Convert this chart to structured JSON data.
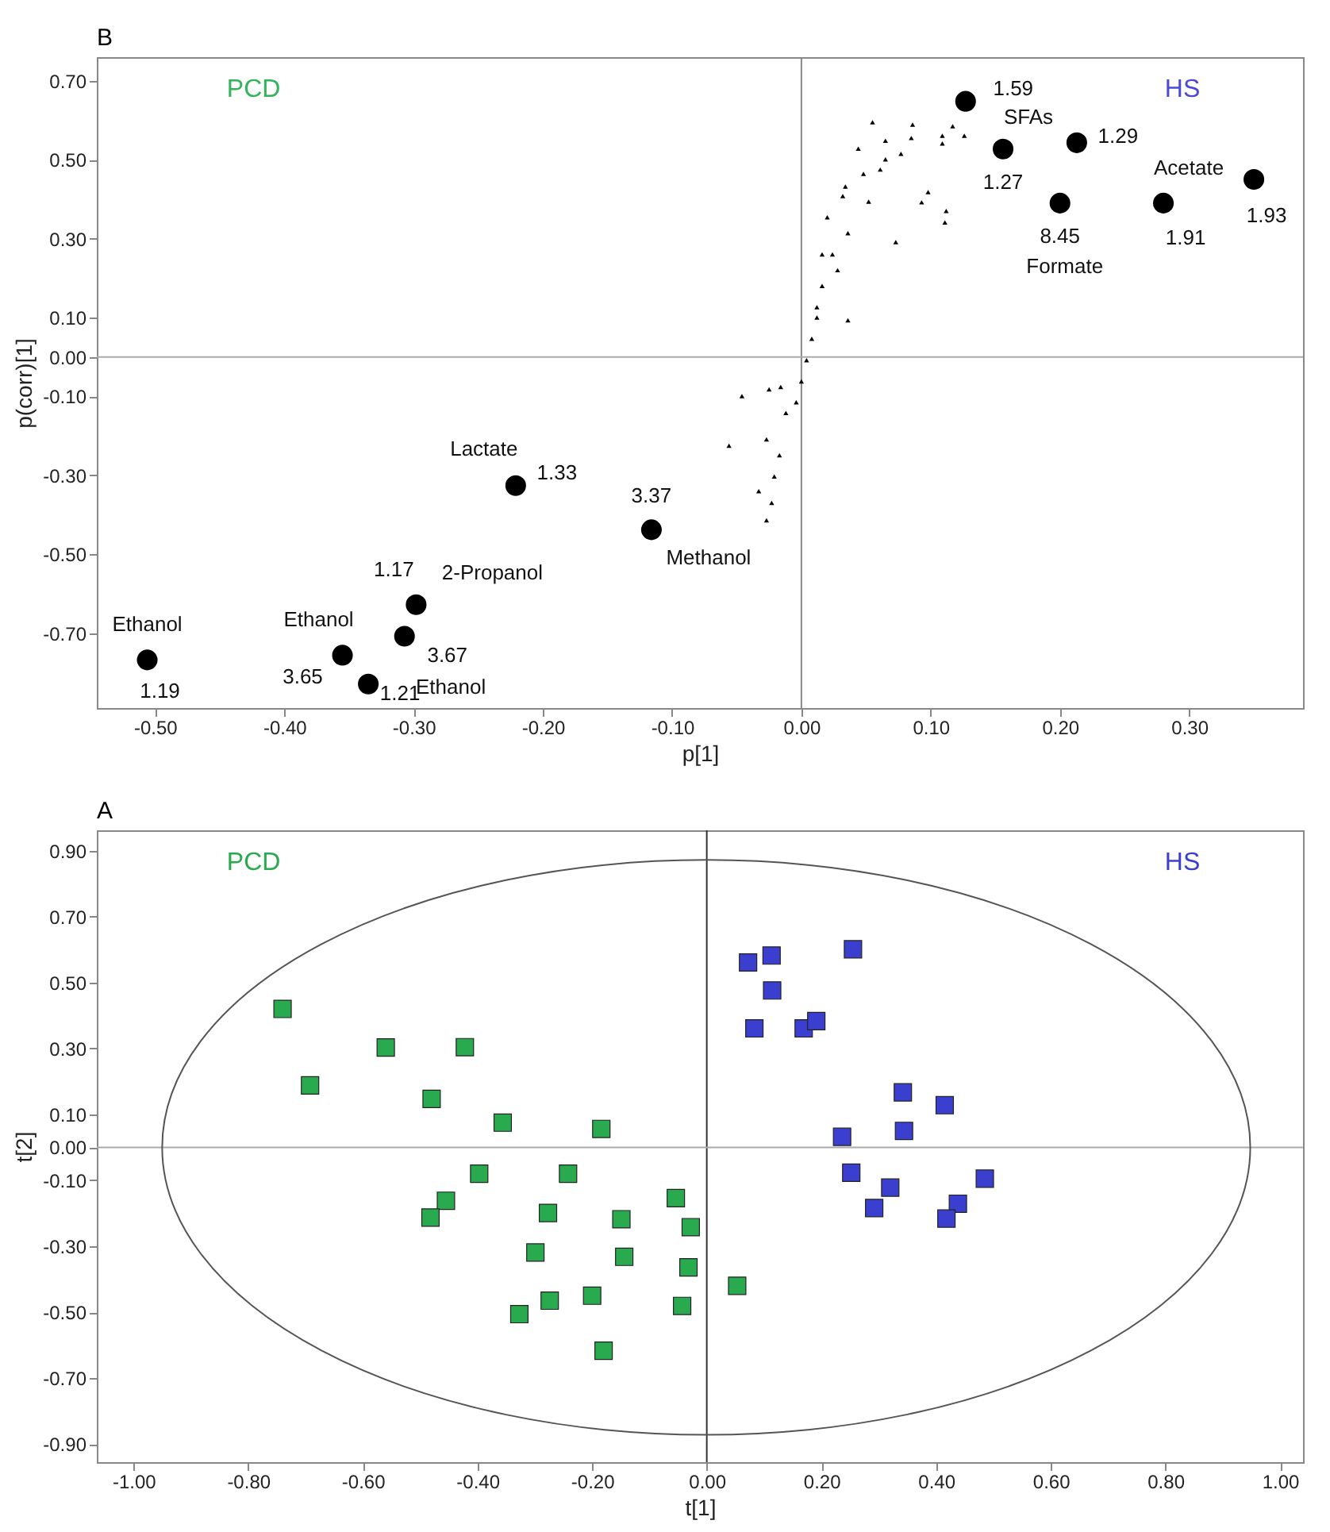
{
  "chart_data": [
    {
      "type": "scatter",
      "title": "B",
      "xlabel": "p[1]",
      "ylabel": "p(corr)[1]",
      "xlim": [
        -0.545,
        0.388
      ],
      "ylim": [
        -0.89,
        0.76
      ],
      "xticks": [
        {
          "value": -0.5,
          "label": "-0.50"
        },
        {
          "value": -0.4,
          "label": "-0.40"
        },
        {
          "value": -0.3,
          "label": "-0.30"
        },
        {
          "value": -0.2,
          "label": "-0.20"
        },
        {
          "value": -0.1,
          "label": "-0.10"
        },
        {
          "value": 0,
          "label": "0.00"
        },
        {
          "value": 0.1,
          "label": "0.10"
        },
        {
          "value": 0.2,
          "label": "0.20"
        },
        {
          "value": 0.3,
          "label": "0.30"
        }
      ],
      "yticks": [
        {
          "value": 0.7,
          "label": "0.70"
        },
        {
          "value": 0.5,
          "label": "0.50"
        },
        {
          "value": 0.3,
          "label": "0.30"
        },
        {
          "value": 0.1,
          "label": "0.10"
        },
        {
          "value": 0,
          "label": "0.00"
        },
        {
          "value": -0.1,
          "label": "-0.10"
        },
        {
          "value": -0.3,
          "label": "-0.30"
        },
        {
          "value": -0.5,
          "label": "-0.50"
        },
        {
          "value": -0.7,
          "label": "-0.70"
        }
      ],
      "ref_lines": [
        {
          "axis": "x",
          "value": 0,
          "color": "#888888"
        },
        {
          "axis": "y",
          "value": 0,
          "color": "#aaaaaa"
        }
      ],
      "series": [
        {
          "color": "#000000",
          "marker": "circle",
          "x": [
            -0.506,
            -0.355,
            -0.335,
            -0.307,
            -0.298,
            -0.221,
            -0.116,
            0.127,
            0.156,
            0.213,
            0.2,
            0.28,
            0.35
          ],
          "values": [
            -0.768,
            -0.756,
            -0.829,
            -0.708,
            -0.628,
            -0.326,
            -0.438,
            0.648,
            0.527,
            0.543,
            0.39,
            0.39,
            0.45
          ]
        },
        {
          "color": "#000000",
          "marker": "triangle",
          "x": [
            0.055,
            0.086,
            0.117,
            0.109,
            0.109,
            0.044,
            0.065,
            0.077,
            0.061,
            0.048,
            0.034,
            0.032,
            0.098,
            0.093,
            0.112,
            0.111,
            0.02,
            0.073,
            0.016,
            0.028,
            0.016,
            0.036,
            0.012,
            0.008,
            0.004,
            0.0,
            -0.004,
            -0.016,
            -0.046,
            -0.025,
            -0.012,
            -0.056,
            -0.027,
            -0.017,
            -0.021,
            -0.033,
            -0.023,
            -0.027,
            0.012,
            0.024,
            0.065,
            0.085,
            0.126,
            0.052,
            0.036
          ],
          "values": [
            0.595,
            0.589,
            0.585,
            0.561,
            0.541,
            0.528,
            0.548,
            0.515,
            0.475,
            0.464,
            0.432,
            0.408,
            0.418,
            0.392,
            0.37,
            0.341,
            0.354,
            0.291,
            0.26,
            0.22,
            0.18,
            0.093,
            0.1,
            0.046,
            -0.008,
            -0.062,
            -0.115,
            -0.076,
            -0.099,
            -0.082,
            -0.142,
            -0.225,
            -0.209,
            -0.249,
            -0.303,
            -0.34,
            -0.37,
            -0.414,
            0.126,
            0.26,
            0.501,
            0.555,
            0.561,
            0.394,
            0.314
          ]
        }
      ],
      "annotations": [
        "PCD",
        "HS",
        {
          "text": "Ethanol",
          "x": -0.506,
          "y": -0.768
        },
        {
          "text": "1.19",
          "x": -0.506,
          "y": -0.768
        },
        {
          "text": "Ethanol",
          "x": -0.355,
          "y": -0.756
        },
        {
          "text": "3.65",
          "x": -0.355,
          "y": -0.756
        },
        {
          "text": "1.21",
          "x": -0.335,
          "y": -0.829
        },
        {
          "text": "Ethanol",
          "x": -0.335,
          "y": -0.829
        },
        {
          "text": "3.67",
          "x": -0.307,
          "y": -0.708
        },
        {
          "text": "1.17",
          "x": -0.298,
          "y": -0.628
        },
        {
          "text": "2-Propanol",
          "x": -0.298,
          "y": -0.628
        },
        {
          "text": "Lactate",
          "x": -0.221,
          "y": -0.326
        },
        {
          "text": "1.33",
          "x": -0.221,
          "y": -0.326
        },
        {
          "text": "3.37",
          "x": -0.116,
          "y": -0.438
        },
        {
          "text": "Methanol",
          "x": -0.116,
          "y": -0.438
        },
        {
          "text": "1.59",
          "x": 0.127,
          "y": 0.648
        },
        {
          "text": "SFAs",
          "x": 0.156,
          "y": 0.527
        },
        {
          "text": "1.27",
          "x": 0.156,
          "y": 0.527
        },
        {
          "text": "1.29",
          "x": 0.213,
          "y": 0.543
        },
        {
          "text": "8.45",
          "x": 0.2,
          "y": 0.39
        },
        {
          "text": "Formate",
          "x": 0.2,
          "y": 0.39
        },
        {
          "text": "Acetate",
          "x": 0.28,
          "y": 0.39
        },
        {
          "text": "1.91",
          "x": 0.28,
          "y": 0.39
        },
        {
          "text": "1.93",
          "x": 0.35,
          "y": 0.45
        }
      ]
    },
    {
      "type": "scatter",
      "title": "A",
      "xlabel": "t[1]",
      "ylabel": "t[2]",
      "xlim": [
        -1.064,
        1.04
      ],
      "ylim": [
        -0.955,
        0.962
      ],
      "xticks": [
        {
          "value": -1,
          "label": "-1.00"
        },
        {
          "value": -0.8,
          "label": "-0.80"
        },
        {
          "value": -0.6,
          "label": "-0.60"
        },
        {
          "value": -0.4,
          "label": "-0.40"
        },
        {
          "value": -0.2,
          "label": "-0.20"
        },
        {
          "value": 0,
          "label": "0.00"
        },
        {
          "value": 0.2,
          "label": "0.20"
        },
        {
          "value": 0.4,
          "label": "0.40"
        },
        {
          "value": 0.6,
          "label": "0.60"
        },
        {
          "value": 0.8,
          "label": "0.80"
        },
        {
          "value": 1,
          "label": "1.00"
        }
      ],
      "yticks": [
        {
          "value": 0.9,
          "label": "0.90"
        },
        {
          "value": 0.7,
          "label": "0.70"
        },
        {
          "value": 0.5,
          "label": "0.50"
        },
        {
          "value": 0.3,
          "label": "0.30"
        },
        {
          "value": 0.1,
          "label": "0.10"
        },
        {
          "value": 0,
          "label": "0.00"
        },
        {
          "value": -0.1,
          "label": "-0.10"
        },
        {
          "value": -0.3,
          "label": "-0.30"
        },
        {
          "value": -0.5,
          "label": "-0.50"
        },
        {
          "value": -0.7,
          "label": "-0.70"
        },
        {
          "value": -0.9,
          "label": "-0.90"
        }
      ],
      "ref_lines": [
        {
          "axis": "x",
          "value": 0,
          "color": "#333333"
        },
        {
          "axis": "y",
          "value": 0,
          "color": "#aaaaaa"
        }
      ],
      "series": [
        {
          "name": "PCD",
          "color": "#2aaa4e",
          "marker": "square",
          "x": [
            -0.74,
            -0.692,
            -0.56,
            -0.422,
            -0.48,
            -0.356,
            -0.184,
            -0.397,
            -0.242,
            -0.455,
            -0.482,
            -0.277,
            -0.149,
            -0.054,
            -0.028,
            -0.299,
            -0.144,
            -0.032,
            -0.2,
            -0.274,
            -0.327,
            -0.043,
            -0.18,
            0.053
          ],
          "values": [
            0.42,
            0.188,
            0.303,
            0.304,
            0.147,
            0.075,
            0.056,
            -0.08,
            -0.08,
            -0.162,
            -0.213,
            -0.199,
            -0.218,
            -0.154,
            -0.242,
            -0.319,
            -0.332,
            -0.364,
            -0.45,
            -0.465,
            -0.506,
            -0.481,
            -0.617,
            -0.42
          ]
        },
        {
          "name": "HS",
          "color": "#3b3fcf",
          "marker": "square",
          "x": [
            0.072,
            0.113,
            0.255,
            0.114,
            0.083,
            0.169,
            0.191,
            0.342,
            0.415,
            0.344,
            0.236,
            0.252,
            0.32,
            0.292,
            0.485,
            0.438,
            0.418
          ],
          "values": [
            0.561,
            0.582,
            0.601,
            0.476,
            0.361,
            0.361,
            0.383,
            0.167,
            0.128,
            0.05,
            0.032,
            -0.077,
            -0.122,
            -0.184,
            -0.095,
            -0.171,
            -0.216
          ]
        }
      ]
    }
  ]
}
